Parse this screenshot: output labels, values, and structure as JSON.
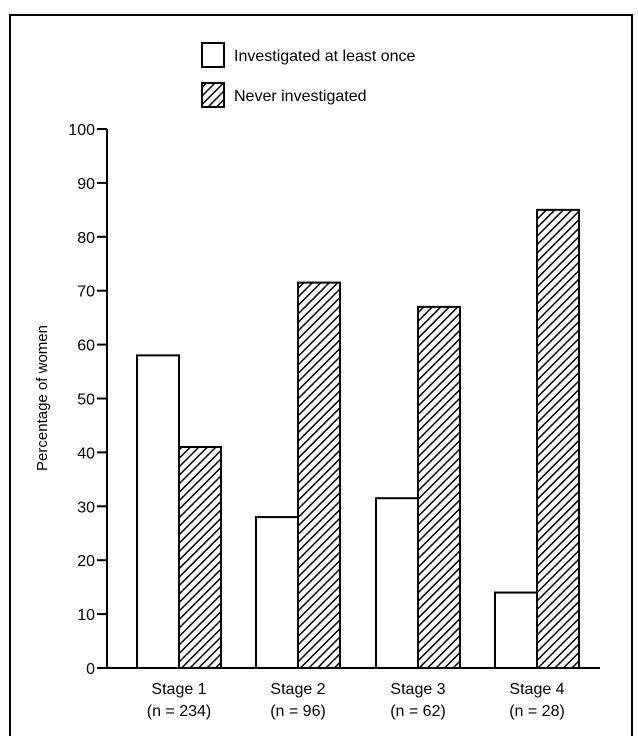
{
  "chart_data": {
    "type": "bar",
    "categories": [
      "Stage 1",
      "Stage 2",
      "Stage 3",
      "Stage 4"
    ],
    "category_sublabels": [
      "(n = 234)",
      "(n = 96)",
      "(n = 62)",
      "(n = 28)"
    ],
    "series": [
      {
        "name": "Investigated at least once",
        "values": [
          58,
          28,
          31.5,
          14
        ]
      },
      {
        "name": "Never investigated",
        "values": [
          41,
          71.5,
          67,
          85
        ]
      }
    ],
    "title": "",
    "xlabel": "",
    "ylabel": "Percentage of women",
    "ylim": [
      0,
      100
    ],
    "yticks": [
      0,
      10,
      20,
      30,
      40,
      50,
      60,
      70,
      80,
      90,
      100
    ],
    "grid": false,
    "legend_placement": "top"
  },
  "colors": {
    "series_fill_1": "#ffffff",
    "series_fill_2": "hatched",
    "stroke": "#000000"
  }
}
